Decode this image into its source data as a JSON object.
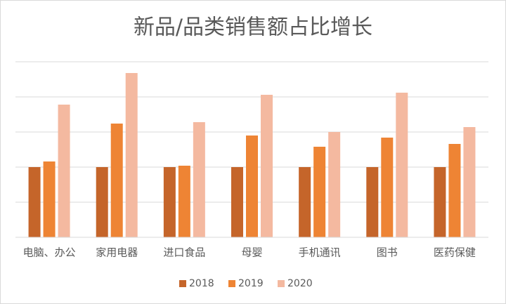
{
  "chart_data": {
    "type": "bar",
    "title": "新品/品类销售额占比增长",
    "categories": [
      "电脑、办公",
      "家用电器",
      "进口食品",
      "母婴",
      "手机通讯",
      "图书",
      "医药保健"
    ],
    "series": [
      {
        "name": "2018",
        "color": "#c5652a",
        "values": [
          1.0,
          1.0,
          1.0,
          1.0,
          1.0,
          1.0,
          1.0
        ]
      },
      {
        "name": "2019",
        "color": "#ee8434",
        "values": [
          1.08,
          1.62,
          1.02,
          1.45,
          1.29,
          1.42,
          1.33
        ]
      },
      {
        "name": "2020",
        "color": "#f4b9a0",
        "values": [
          1.89,
          2.34,
          1.64,
          2.03,
          1.5,
          2.06,
          1.57
        ]
      }
    ],
    "ylim": [
      0,
      2.5
    ],
    "yticks": [
      0,
      0.5,
      1,
      1.5,
      2,
      2.5
    ],
    "grid": true,
    "legend": "bottom"
  }
}
